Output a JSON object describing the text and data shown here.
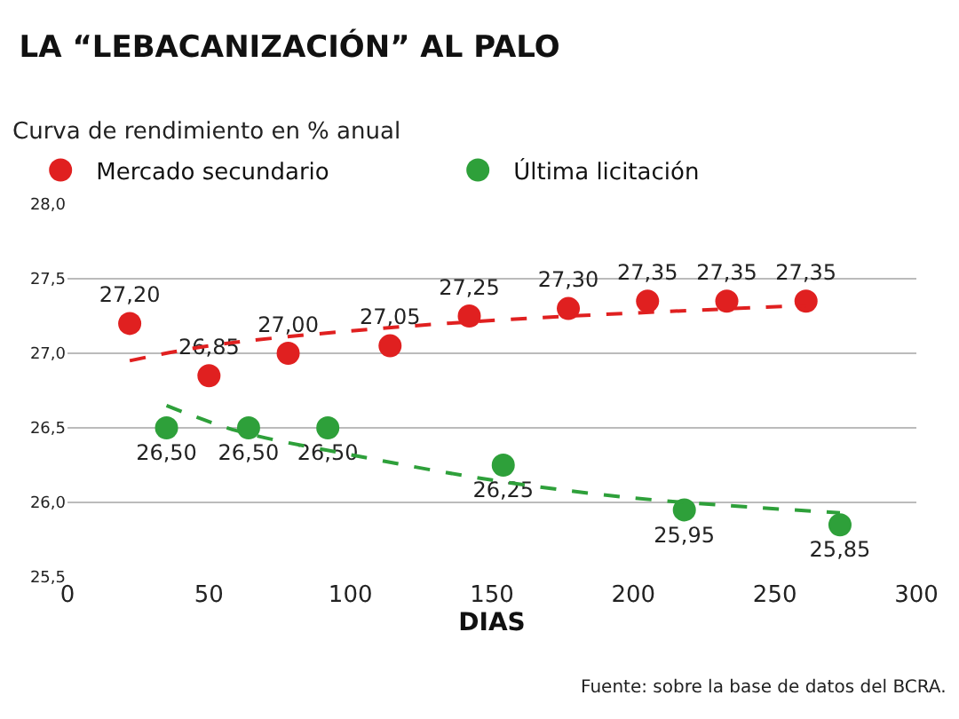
{
  "chart_data": {
    "type": "scatter",
    "title": "LA “LEBACANIZACIÓN” AL PALO",
    "subtitle": "Curva de rendimiento en % anual",
    "xlabel": "DIAS",
    "annotations": [
      "Fuente: sobre la base de datos del BCRA."
    ],
    "series": [
      {
        "name": "Mercado secundario",
        "color": "#e02020",
        "x": [
          22,
          50,
          78,
          114,
          142,
          177,
          205,
          233,
          261
        ],
        "values": [
          27.2,
          26.85,
          27.0,
          27.05,
          27.25,
          27.3,
          27.35,
          27.35,
          27.35
        ],
        "value_labels": [
          "27,20",
          "26,85",
          "27,00",
          "27,05",
          "27,25",
          "27,30",
          "27,35",
          "27,35",
          "27,35"
        ]
      },
      {
        "name": "Última licitación",
        "color": "#2ea03a",
        "x": [
          35,
          64,
          92,
          154,
          218,
          273
        ],
        "values": [
          26.5,
          26.5,
          26.5,
          26.25,
          25.95,
          25.85
        ],
        "value_labels": [
          "26,50",
          "26,50",
          "26,50",
          "26,25",
          "25,95",
          "25,85"
        ]
      },
      {
        "type": "line",
        "marker": "none",
        "line_style": "dashed",
        "color": "#e02020",
        "x": [
          22,
          50,
          100,
          150,
          200,
          261
        ],
        "values": [
          26.95,
          27.05,
          27.15,
          27.22,
          27.27,
          27.32
        ]
      },
      {
        "type": "line",
        "marker": "none",
        "line_style": "dashed",
        "color": "#2ea03a",
        "x": [
          35,
          60,
          100,
          150,
          200,
          273
        ],
        "values": [
          26.65,
          26.48,
          26.32,
          26.15,
          26.03,
          25.93
        ]
      }
    ],
    "marker": "circle",
    "xlim": [
      0,
      300
    ],
    "xticks": [
      0,
      50,
      100,
      150,
      200,
      250,
      300
    ],
    "ylim": [
      25.5,
      28.0
    ],
    "yticks": [
      {
        "value": 25.5,
        "label": "25,5"
      },
      {
        "value": 26.0,
        "label": "26,0"
      },
      {
        "value": 26.5,
        "label": "26,5"
      },
      {
        "value": 27.0,
        "label": "27,0"
      },
      {
        "value": 27.5,
        "label": "27,5"
      },
      {
        "value": 28.0,
        "label": "28,0"
      }
    ],
    "grid": "y",
    "legend": "top left"
  }
}
